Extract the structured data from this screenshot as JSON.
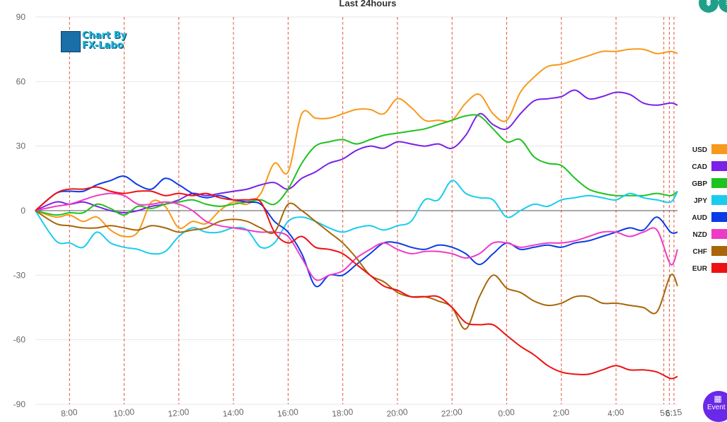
{
  "chart_data": {
    "type": "line",
    "title": "Last 24hours",
    "ylim": [
      -90,
      90
    ],
    "yticks": [
      90,
      60,
      30,
      0,
      -30,
      -60,
      -90
    ],
    "xticks": [
      "8:00",
      "10:00",
      "12:00",
      "14:00",
      "16:00",
      "18:00",
      "20:00",
      "22:00",
      "0:00",
      "2:00",
      "4:00",
      "5:",
      "6:",
      "6:15"
    ],
    "x_hours": [
      6.75,
      7.5,
      8.0,
      8.5,
      9.0,
      9.5,
      10.0,
      10.5,
      11.0,
      11.5,
      12.0,
      12.5,
      13.0,
      13.5,
      14.0,
      14.5,
      15.0,
      15.5,
      16.0,
      16.5,
      17.0,
      17.5,
      18.0,
      18.5,
      19.0,
      19.5,
      20.0,
      20.5,
      21.0,
      21.5,
      22.0,
      22.5,
      23.0,
      23.5,
      24.0,
      24.5,
      25.0,
      25.5,
      26.0,
      26.5,
      27.0,
      27.5,
      28.0,
      28.5,
      29.0,
      29.5,
      30.0,
      30.25
    ],
    "series": [
      {
        "name": "USD",
        "color": "#f7991c",
        "values": [
          0,
          -3,
          -2,
          -5,
          -3,
          -9,
          -12,
          -10,
          4,
          2,
          -8,
          -5,
          -6,
          0,
          4,
          3,
          8,
          22,
          18,
          45,
          43,
          43,
          45,
          47,
          47,
          45,
          52,
          48,
          42,
          42,
          42,
          50,
          54,
          45,
          42,
          55,
          62,
          67,
          68,
          70,
          72,
          74,
          74,
          75,
          75,
          73,
          74,
          73
        ]
      },
      {
        "name": "CAD",
        "color": "#7b22e6",
        "values": [
          0,
          4,
          3,
          4,
          2,
          0,
          -1,
          0,
          2,
          3,
          5,
          8,
          7,
          8,
          9,
          10,
          12,
          13,
          10,
          15,
          18,
          22,
          24,
          28,
          30,
          29,
          32,
          31,
          30,
          31,
          29,
          35,
          45,
          40,
          38,
          45,
          51,
          52,
          53,
          56,
          52,
          53,
          55,
          54,
          50,
          49,
          50,
          49
        ]
      },
      {
        "name": "GBP",
        "color": "#1ec21e",
        "values": [
          0,
          -2,
          -1,
          -1,
          3,
          1,
          -2,
          2,
          1,
          3,
          4,
          5,
          3,
          2,
          3,
          4,
          5,
          3,
          10,
          22,
          30,
          32,
          33,
          31,
          33,
          35,
          36,
          37,
          38,
          40,
          42,
          44,
          44,
          38,
          32,
          33,
          25,
          22,
          21,
          15,
          10,
          8,
          7,
          7,
          7,
          8,
          7,
          9
        ]
      },
      {
        "name": "JPY",
        "color": "#19ccee",
        "values": [
          0,
          -14,
          -15,
          -17,
          -10,
          -15,
          -17,
          -18,
          -20,
          -19,
          -12,
          -8,
          -10,
          -10,
          -8,
          -9,
          -17,
          -15,
          -5,
          -3,
          -5,
          -8,
          -10,
          -8,
          -7,
          -9,
          -7,
          -5,
          5,
          5,
          14,
          8,
          6,
          5,
          -3,
          0,
          3,
          2,
          5,
          6,
          7,
          6,
          5,
          8,
          6,
          5,
          4,
          9
        ]
      },
      {
        "name": "AUD",
        "color": "#0a3be8",
        "values": [
          0,
          8,
          9,
          9,
          12,
          14,
          16,
          12,
          10,
          15,
          12,
          8,
          6,
          7,
          5,
          4,
          3,
          -5,
          -10,
          -20,
          -35,
          -30,
          -30,
          -25,
          -20,
          -15,
          -15,
          -17,
          -18,
          -16,
          -17,
          -20,
          -25,
          -20,
          -15,
          -18,
          -17,
          -16,
          -17,
          -15,
          -14,
          -12,
          -10,
          -8,
          -9,
          -3,
          -10,
          -10
        ]
      },
      {
        "name": "NZD",
        "color": "#ee3bc7",
        "values": [
          0,
          2,
          3,
          5,
          7,
          8,
          7,
          3,
          3,
          4,
          3,
          0,
          -5,
          -7,
          -8,
          -9,
          -10,
          -10,
          -12,
          -22,
          -32,
          -30,
          -28,
          -22,
          -18,
          -15,
          -18,
          -20,
          -19,
          -19,
          -20,
          -22,
          -20,
          -15,
          -15,
          -17,
          -16,
          -15,
          -15,
          -14,
          -12,
          -10,
          -10,
          -12,
          -10,
          -9,
          -25,
          -18
        ]
      },
      {
        "name": "CHF",
        "color": "#a86608",
        "values": [
          0,
          -6,
          -7,
          -8,
          -8,
          -7,
          -8,
          -9,
          -7,
          -8,
          -10,
          -9,
          -8,
          -5,
          -4,
          -5,
          -8,
          -10,
          3,
          0,
          -5,
          -10,
          -15,
          -22,
          -30,
          -33,
          -38,
          -40,
          -40,
          -42,
          -45,
          -55,
          -40,
          -30,
          -36,
          -38,
          -42,
          -44,
          -43,
          -40,
          -40,
          -43,
          -43,
          -44,
          -45,
          -47,
          -30,
          -35
        ]
      },
      {
        "name": "EUR",
        "color": "#ee1111",
        "values": [
          0,
          8,
          10,
          10,
          11,
          9,
          8,
          9,
          9,
          7,
          8,
          7,
          8,
          6,
          5,
          5,
          4,
          -10,
          -15,
          -12,
          -17,
          -18,
          -20,
          -25,
          -30,
          -35,
          -37,
          -40,
          -40,
          -40,
          -45,
          -52,
          -53,
          -53,
          -58,
          -63,
          -67,
          -72,
          -75,
          -76,
          -76,
          -74,
          -72,
          -74,
          -74,
          -75,
          -78,
          -77
        ]
      }
    ]
  },
  "logo": {
    "line1": "Chart By",
    "line2": "FX-Labo"
  },
  "toolbar": {
    "btn1_glyph": "⇟",
    "btn2_glyph": "≡"
  },
  "event_button": {
    "label": "Event",
    "icon": "calendar-icon"
  }
}
